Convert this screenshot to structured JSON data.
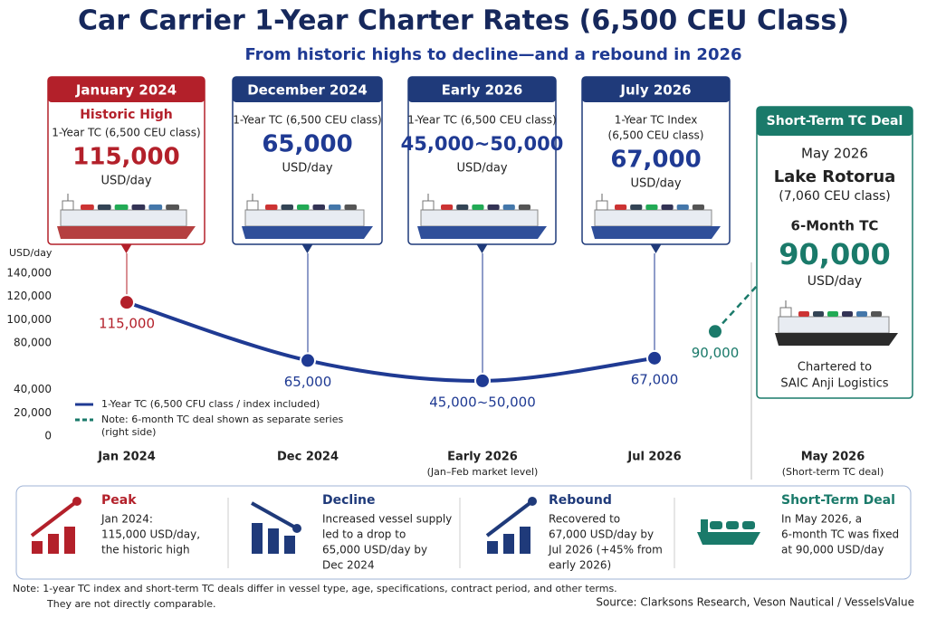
{
  "header": {
    "title": "Car Carrier 1-Year Charter Rates (6,500 CEU Class)",
    "subtitle": "From historic highs to decline—and a rebound in 2026"
  },
  "cards": [
    {
      "header": "January 2024",
      "highlight": "Historic High",
      "subtitle": [
        "1-Year TC (6,500 CEU class)"
      ],
      "value": "115,000",
      "unit": "USD/day"
    },
    {
      "header": "December 2024",
      "subtitle": [
        "1-Year TC (6,500 CEU class)"
      ],
      "value": "65,000",
      "unit": "USD/day"
    },
    {
      "header": "Early 2026",
      "subtitle": [
        "1-Year TC (6,500 CEU class)"
      ],
      "value": "45,000~50,000",
      "unit": "USD/day"
    },
    {
      "header": "July 2026",
      "subtitle": [
        "1-Year TC Index",
        "(6,500 CEU class)"
      ],
      "value": "67,000",
      "unit": "USD/day"
    }
  ],
  "deal_card": {
    "header": "Short-Term TC Deal",
    "date": "May 2026",
    "vessel": "Lake Rotorua",
    "vessel_class": "(7,060 CEU class)",
    "term": "6-Month TC",
    "value": "90,000",
    "unit": "USD/day",
    "note": [
      "Chartered to",
      "SAIC Anji Logistics"
    ]
  },
  "chart_data": {
    "type": "line",
    "y_label": "USD/day",
    "categories": [
      "Jan 2024",
      "Dec 2024",
      "Early 2026",
      "Jul 2026",
      "May 2026"
    ],
    "category_notes": [
      null,
      null,
      "(Jan–Feb market level)",
      null,
      "(Short-term TC deal)"
    ],
    "series": [
      {
        "name": "1-Year TC  (6,500 CFU class / index included)",
        "color": "#1f3a93",
        "marker_colors": [
          "#b3202a",
          "#1f3a93",
          "#1f3a93",
          "#1f3a93",
          null
        ],
        "values": [
          115000,
          65000,
          47500,
          67000,
          null
        ],
        "value_labels": [
          "115,000",
          "65,000",
          "45,000~50,000",
          "67,000",
          null
        ]
      },
      {
        "name": "Note: 6-month TC deal shown as separate series (right side)",
        "color": "#1a7a6a",
        "dashed": true,
        "values": [
          null,
          null,
          null,
          null,
          90000
        ],
        "value_labels": [
          null,
          null,
          null,
          null,
          "90,000"
        ]
      }
    ],
    "ylim": [
      0,
      140000
    ],
    "yticks": [
      0,
      {
        "value": 20000,
        "label": "20,000"
      },
      {
        "value": 40000,
        "label": "40,000"
      },
      {
        "value": 80000,
        "label": "80,000"
      },
      {
        "value": 100000,
        "label": "100,000"
      },
      {
        "value": 120000,
        "label": "120,000"
      },
      {
        "value": 140000,
        "label": "140,000"
      }
    ],
    "grid": false
  },
  "summary": [
    {
      "title": "Peak",
      "lines": [
        "Jan 2024:",
        "115,000 USD/day,",
        "the historic high"
      ]
    },
    {
      "title": "Decline",
      "lines": [
        "Increased vessel supply",
        "led to a drop to",
        "65,000 USD/day by",
        "Dec 2024"
      ]
    },
    {
      "title": "Rebound",
      "lines": [
        "Recovered to",
        "67,000 USD/day by",
        "Jul 2026 (+45% from",
        "early 2026)"
      ]
    },
    {
      "title": "Short-Term Deal",
      "lines": [
        "In May 2026, a",
        "6-month TC was fixed",
        "at 90,000 USD/day"
      ]
    }
  ],
  "footer": {
    "note": [
      "Note:  1-year TC index and short-term TC deals differ in vessel type, age, specifications, contract period, and other terms.",
      "They are not directly comparable."
    ],
    "source": "Source:  Clarksons Research,  Veson Nautical / VesselsValue"
  }
}
